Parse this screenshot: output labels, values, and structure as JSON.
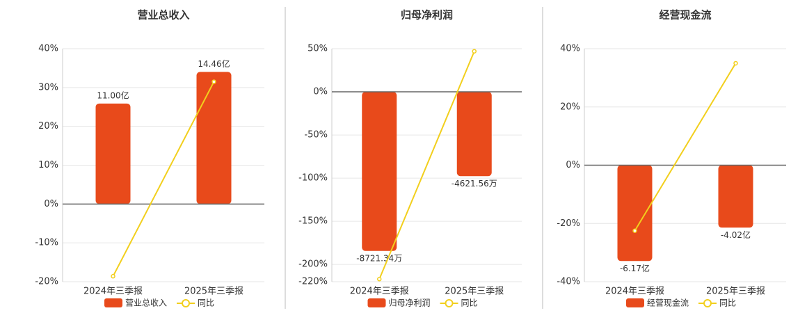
{
  "chart_data": [
    {
      "type": "bar",
      "title": "营业总收入",
      "categories": [
        "2024年三季报",
        "2025年三季报"
      ],
      "ylim": [
        -20,
        40
      ],
      "yticks": [
        {
          "value": -20,
          "label": "-20%"
        },
        {
          "value": -10,
          "label": "-10%"
        },
        {
          "value": 0,
          "label": "0%"
        },
        {
          "value": 10,
          "label": "10%"
        },
        {
          "value": 20,
          "label": "20%"
        },
        {
          "value": 30,
          "label": "30%"
        },
        {
          "value": 40,
          "label": "40%"
        }
      ],
      "y2lim": [
        -8.5,
        17
      ],
      "grid": true,
      "series": [
        {
          "name": "营业总收入",
          "color": "#e84a1b",
          "axis": "y2",
          "values": [
            11.0,
            14.46
          ],
          "value_labels": [
            "11.00亿",
            "14.46亿"
          ]
        },
        {
          "name": "同比",
          "color": "#f2cf1d",
          "values": [
            -18.6,
            31.5
          ]
        }
      ]
    },
    {
      "type": "bar",
      "title": "归母净利润",
      "categories": [
        "2024年三季报",
        "2025年三季报"
      ],
      "ylim": [
        -220,
        50
      ],
      "yticks": [
        {
          "value": -220,
          "label": "-220%"
        },
        {
          "value": -200,
          "label": "-200%"
        },
        {
          "value": -150,
          "label": "-150%"
        },
        {
          "value": -100,
          "label": "-100%"
        },
        {
          "value": -50,
          "label": "-50%"
        },
        {
          "value": 0,
          "label": "0%"
        },
        {
          "value": 50,
          "label": "50%"
        }
      ],
      "y2lim": [
        -10406,
        2365
      ],
      "grid": true,
      "series": [
        {
          "name": "归母净利润",
          "color": "#e84a1b",
          "axis": "y2",
          "values": [
            -8721.34,
            -4621.56
          ],
          "value_labels": [
            "-8721.34万",
            "-4621.56万"
          ]
        },
        {
          "name": "同比",
          "color": "#f2cf1d",
          "values": [
            -217,
            47
          ]
        }
      ]
    },
    {
      "type": "bar",
      "title": "经营现金流",
      "categories": [
        "2024年三季报",
        "2025年三季报"
      ],
      "ylim": [
        -40,
        40
      ],
      "yticks": [
        {
          "value": -40,
          "label": "-40%"
        },
        {
          "value": -20,
          "label": "-20%"
        },
        {
          "value": 0,
          "label": "0%"
        },
        {
          "value": 20,
          "label": "20%"
        },
        {
          "value": 40,
          "label": "40%"
        }
      ],
      "y2lim": [
        -7.5,
        7.5
      ],
      "grid": true,
      "series": [
        {
          "name": "经营现金流",
          "color": "#e84a1b",
          "axis": "y2",
          "values": [
            -6.17,
            -4.02
          ],
          "value_labels": [
            "-6.17亿",
            "-4.02亿"
          ]
        },
        {
          "name": "同比",
          "color": "#f2cf1d",
          "values": [
            -22.5,
            35
          ]
        }
      ]
    }
  ]
}
